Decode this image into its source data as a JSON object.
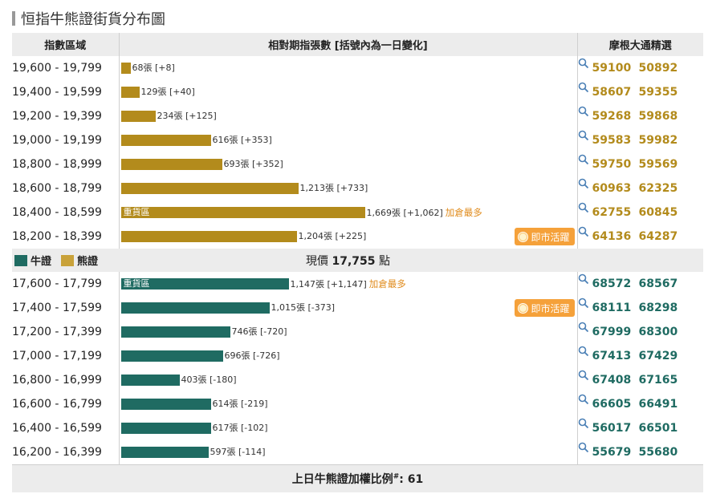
{
  "page": {
    "title": "恒指牛熊證街貨分布圖",
    "headers": {
      "range": "指數區域",
      "bars": "相對期指張數 [括號內為一日變化]",
      "codes": "摩根大通精選"
    },
    "legend": {
      "bull": "牛證",
      "bear": "熊證"
    },
    "current_price_label": "現價",
    "current_price": "17,755",
    "current_price_unit": "點",
    "footer_label": "上日牛熊證加權比例",
    "footer_sup": "#",
    "footer_value": "61",
    "live_badge": "即市活躍",
    "colors": {
      "bear": "#b38b1c",
      "bull": "#1f6b62"
    },
    "max_count": 1669
  },
  "bear_rows": [
    {
      "range": "19,600 - 19,799",
      "count": 68,
      "count_text": "68張 [+8]",
      "codes": [
        "59100",
        "50892"
      ]
    },
    {
      "range": "19,400 - 19,599",
      "count": 129,
      "count_text": "129張 [+40]",
      "codes": [
        "58607",
        "59355"
      ]
    },
    {
      "range": "19,200 - 19,399",
      "count": 234,
      "count_text": "234張 [+125]",
      "codes": [
        "59268",
        "59868"
      ]
    },
    {
      "range": "19,000 - 19,199",
      "count": 616,
      "count_text": "616張 [+353]",
      "codes": [
        "59583",
        "59982"
      ]
    },
    {
      "range": "18,800 - 18,999",
      "count": 693,
      "count_text": "693張 [+352]",
      "codes": [
        "59750",
        "59569"
      ]
    },
    {
      "range": "18,600 - 18,799",
      "count": 1213,
      "count_text": "1,213張 [+733]",
      "codes": [
        "60963",
        "62325"
      ]
    },
    {
      "range": "18,400 - 18,599",
      "count": 1669,
      "count_text": "1,669張 [+1,062]",
      "bar_label": "重貨區",
      "note": "加倉最多",
      "codes": [
        "62755",
        "60845"
      ]
    },
    {
      "range": "18,200 - 18,399",
      "count": 1204,
      "count_text": "1,204張 [+225]",
      "live": true,
      "codes": [
        "64136",
        "64287"
      ]
    }
  ],
  "bull_rows": [
    {
      "range": "17,600 - 17,799",
      "count": 1147,
      "count_text": "1,147張 [+1,147]",
      "bar_label": "重貨區",
      "note": "加倉最多",
      "codes": [
        "68572",
        "68567"
      ]
    },
    {
      "range": "17,400 - 17,599",
      "count": 1015,
      "count_text": "1,015張 [-373]",
      "live": true,
      "codes": [
        "68111",
        "68298"
      ]
    },
    {
      "range": "17,200 - 17,399",
      "count": 746,
      "count_text": "746張 [-720]",
      "codes": [
        "67999",
        "68300"
      ]
    },
    {
      "range": "17,000 - 17,199",
      "count": 696,
      "count_text": "696張 [-726]",
      "codes": [
        "67413",
        "67429"
      ]
    },
    {
      "range": "16,800 - 16,999",
      "count": 403,
      "count_text": "403張 [-180]",
      "codes": [
        "67408",
        "67165"
      ]
    },
    {
      "range": "16,600 - 16,799",
      "count": 614,
      "count_text": "614張 [-219]",
      "codes": [
        "66605",
        "66491"
      ]
    },
    {
      "range": "16,400 - 16,599",
      "count": 617,
      "count_text": "617張 [-102]",
      "codes": [
        "56017",
        "66501"
      ]
    },
    {
      "range": "16,200 - 16,399",
      "count": 597,
      "count_text": "597張 [-114]",
      "codes": [
        "55679",
        "55680"
      ]
    }
  ]
}
